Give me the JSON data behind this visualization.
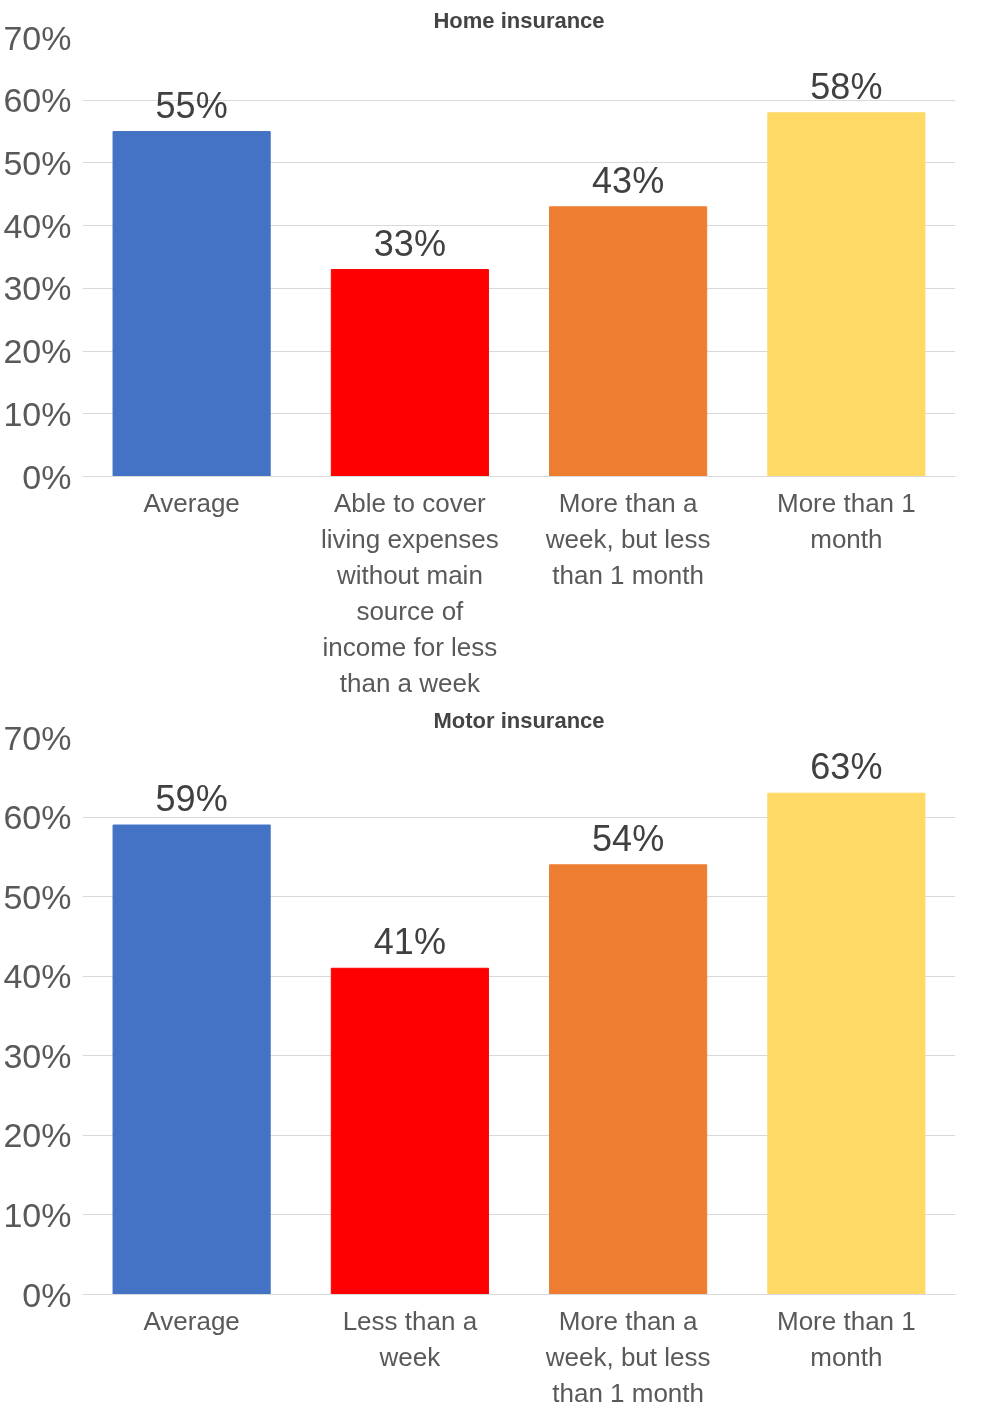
{
  "chart_data": [
    {
      "type": "bar",
      "title": "Home insurance",
      "categories": [
        "Average",
        "Able to cover living expenses without main source of income for less than a week",
        "More than a week, but less than 1 month",
        "More than 1 month"
      ],
      "values": [
        55,
        33,
        43,
        58
      ],
      "colors": [
        "#4472c4",
        "#ff0000",
        "#ed7d31",
        "#ffd966"
      ],
      "value_labels": [
        "55%",
        "33%",
        "43%",
        "58%"
      ],
      "ylim": [
        0,
        70
      ],
      "yticks": [
        {
          "value": 0,
          "label": "0%"
        },
        {
          "value": 10,
          "label": "10%"
        },
        {
          "value": 20,
          "label": "20%"
        },
        {
          "value": 30,
          "label": "30%"
        },
        {
          "value": 40,
          "label": "40%"
        },
        {
          "value": 50,
          "label": "50%"
        },
        {
          "value": 60,
          "label": "60%"
        },
        {
          "value": 70,
          "label": "70%"
        }
      ],
      "grid": "y"
    },
    {
      "type": "bar",
      "title": "Motor insurance",
      "categories": [
        "Average",
        "Less than a week",
        "More than a week, but less than 1 month",
        "More than 1 month"
      ],
      "values": [
        59,
        41,
        54,
        63
      ],
      "colors": [
        "#4472c4",
        "#ff0000",
        "#ed7d31",
        "#ffd966"
      ],
      "value_labels": [
        "59%",
        "41%",
        "54%",
        "63%"
      ],
      "ylim": [
        0,
        70
      ],
      "yticks": [
        {
          "value": 0,
          "label": "0%"
        },
        {
          "value": 10,
          "label": "10%"
        },
        {
          "value": 20,
          "label": "20%"
        },
        {
          "value": 30,
          "label": "30%"
        },
        {
          "value": 40,
          "label": "40%"
        },
        {
          "value": 50,
          "label": "50%"
        },
        {
          "value": 60,
          "label": "60%"
        },
        {
          "value": 70,
          "label": "70%"
        }
      ],
      "grid": "y"
    }
  ]
}
